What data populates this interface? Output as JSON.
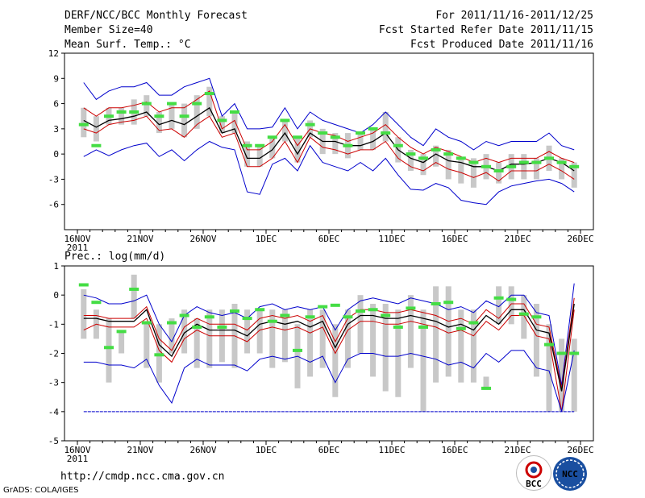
{
  "header": {
    "left": [
      "DERF/NCC/BCC Monthly Forecast",
      "Member Size=40",
      "Mean Surf. Temp.: °C"
    ],
    "right": [
      "For 2011/11/16-2011/12/25",
      "Fcst Started Refer Date 2011/11/15",
      "Fcst Produced Date 2011/11/16"
    ]
  },
  "footer": {
    "url": "http://cmdp.ncc.cma.gov.cn",
    "credit": "GrADS: COLA/IGES",
    "logo1": "BCC",
    "logo2": "NCC"
  },
  "colors": {
    "mean": "#000000",
    "spread": "#cc0000",
    "extreme": "#0000cc",
    "box": "#c8c8c8",
    "obs": "#44dd44"
  },
  "chart_data": [
    {
      "type": "line",
      "title": "Mean Surf. Temp.: °C",
      "xlabel": "",
      "ylabel": "",
      "ylim": [
        -9,
        12
      ],
      "yticks": [
        -6,
        -3,
        0,
        3,
        6,
        9,
        12
      ],
      "xticks": [
        "16NOV",
        "21NOV",
        "26NOV",
        "1DEC",
        "6DEC",
        "11DEC",
        "16DEC",
        "21DEC",
        "26DEC"
      ],
      "xyear": "2011",
      "days": 40,
      "series": [
        {
          "name": "ensemble max",
          "values": [
            8.5,
            6.5,
            7.5,
            8.0,
            8.0,
            8.5,
            7.0,
            7.0,
            8.0,
            8.5,
            9.0,
            4.5,
            6.0,
            3.0,
            3.0,
            3.2,
            5.5,
            3.0,
            5.0,
            4.0,
            3.5,
            3.0,
            2.5,
            3.5,
            5.0,
            3.5,
            2.0,
            1.0,
            3.0,
            2.0,
            1.5,
            0.5,
            1.5,
            1.0,
            1.5,
            1.5,
            1.5,
            2.5,
            1.0,
            0.5
          ]
        },
        {
          "name": "upper spread",
          "values": [
            5.5,
            4.5,
            5.5,
            5.5,
            5.8,
            6.2,
            5.0,
            5.5,
            5.5,
            6.5,
            7.5,
            3.0,
            4.0,
            0.5,
            0.5,
            1.5,
            3.5,
            1.0,
            3.0,
            2.5,
            2.2,
            1.5,
            2.0,
            2.5,
            3.5,
            2.0,
            0.8,
            0.0,
            0.8,
            0.3,
            -0.3,
            -1.0,
            -0.5,
            -1.0,
            -0.5,
            -0.5,
            -0.5,
            0.3,
            -0.5,
            -1.0
          ]
        },
        {
          "name": "ensemble mean",
          "values": [
            4.0,
            3.2,
            4.0,
            4.2,
            4.5,
            5.0,
            3.5,
            4.0,
            3.5,
            4.5,
            5.5,
            2.5,
            3.0,
            -0.5,
            -0.5,
            0.5,
            2.5,
            0.0,
            2.5,
            1.5,
            1.5,
            1.0,
            1.0,
            1.5,
            2.5,
            0.5,
            -0.5,
            -1.0,
            0.0,
            -0.8,
            -1.0,
            -1.5,
            -1.5,
            -2.0,
            -1.2,
            -1.2,
            -1.0,
            -0.5,
            -1.0,
            -2.0
          ]
        },
        {
          "name": "lower spread",
          "values": [
            3.0,
            2.5,
            3.5,
            3.8,
            4.0,
            4.5,
            2.8,
            3.0,
            2.0,
            3.5,
            4.5,
            2.0,
            2.5,
            -1.5,
            -1.5,
            -0.5,
            1.5,
            -1.0,
            2.0,
            0.8,
            0.5,
            0.0,
            0.5,
            0.5,
            1.5,
            -0.5,
            -1.5,
            -2.0,
            -1.0,
            -1.8,
            -2.2,
            -2.8,
            -2.2,
            -3.2,
            -2.0,
            -2.0,
            -2.0,
            -1.2,
            -2.0,
            -3.0
          ]
        },
        {
          "name": "ensemble min",
          "values": [
            -0.3,
            0.5,
            -0.2,
            0.5,
            1.0,
            1.3,
            -0.3,
            0.5,
            -0.8,
            0.5,
            1.5,
            0.8,
            0.5,
            -4.5,
            -4.8,
            -1.2,
            -0.5,
            -2.0,
            1.0,
            -1.0,
            -1.5,
            -2.0,
            -1.0,
            -2.0,
            -0.5,
            -2.5,
            -4.2,
            -4.3,
            -3.5,
            -4.0,
            -5.5,
            -5.8,
            -6.0,
            -4.5,
            -3.8,
            -3.5,
            -3.2,
            -3.0,
            -3.5,
            -4.5
          ]
        }
      ],
      "obs": [
        3.5,
        1.0,
        4.5,
        5.0,
        5.0,
        6.0,
        4.5,
        6.0,
        4.5,
        6.0,
        7.2,
        4.0,
        5.0,
        1.0,
        1.0,
        2.0,
        4.0,
        2.0,
        3.5,
        2.5,
        2.0,
        1.0,
        2.5,
        3.0,
        2.5,
        1.0,
        0.0,
        -0.5,
        0.5,
        0.0,
        -0.5,
        -1.0,
        -1.5,
        -2.0,
        -1.5,
        -1.0,
        -1.0,
        -0.5,
        -1.0,
        -1.5
      ],
      "boxes": [
        [
          2.0,
          5.5
        ],
        [
          1.5,
          4.5
        ],
        [
          3.5,
          5.5
        ],
        [
          3.5,
          5.5
        ],
        [
          3.5,
          6.5
        ],
        [
          4.5,
          7.0
        ],
        [
          2.5,
          5.0
        ],
        [
          3.0,
          6.0
        ],
        [
          2.0,
          6.0
        ],
        [
          3.0,
          7.0
        ],
        [
          4.5,
          8.0
        ],
        [
          2.5,
          4.5
        ],
        [
          2.5,
          5.0
        ],
        [
          -1.5,
          1.5
        ],
        [
          -1.5,
          1.0
        ],
        [
          -0.5,
          2.0
        ],
        [
          1.5,
          4.0
        ],
        [
          -1.0,
          2.0
        ],
        [
          2.0,
          4.0
        ],
        [
          0.0,
          3.0
        ],
        [
          0.0,
          2.5
        ],
        [
          -0.5,
          2.5
        ],
        [
          0.5,
          2.5
        ],
        [
          0.5,
          3.0
        ],
        [
          1.5,
          5.0
        ],
        [
          -1.0,
          2.0
        ],
        [
          -2.0,
          0.5
        ],
        [
          -2.5,
          0.0
        ],
        [
          -1.5,
          1.0
        ],
        [
          -3.0,
          0.5
        ],
        [
          -3.5,
          -0.5
        ],
        [
          -4.0,
          -0.5
        ],
        [
          -3.0,
          0.0
        ],
        [
          -3.5,
          -1.0
        ],
        [
          -3.0,
          0.0
        ],
        [
          -3.0,
          0.0
        ],
        [
          -3.0,
          -0.5
        ],
        [
          -2.0,
          1.0
        ],
        [
          -3.0,
          -0.5
        ],
        [
          -4.0,
          -1.0
        ]
      ]
    },
    {
      "type": "line",
      "title": "Prec.: log(mm/d)",
      "xlabel": "",
      "ylabel": "",
      "ylim": [
        -5,
        1
      ],
      "yticks": [
        -5,
        -4,
        -3,
        -2,
        -1,
        0,
        1
      ],
      "xticks": [
        "16NOV",
        "21NOV",
        "26NOV",
        "1DEC",
        "6DEC",
        "11DEC",
        "16DEC",
        "21DEC",
        "26DEC"
      ],
      "xyear": "2011",
      "days": 40,
      "series": [
        {
          "name": "ensemble max",
          "values": [
            0.0,
            -0.1,
            -0.3,
            -0.3,
            -0.2,
            0.0,
            -1.0,
            -1.6,
            -0.7,
            -0.4,
            -0.6,
            -0.7,
            -0.6,
            -0.8,
            -0.4,
            -0.3,
            -0.5,
            -0.4,
            -0.5,
            -0.4,
            -1.2,
            -0.5,
            -0.2,
            -0.1,
            -0.2,
            -0.3,
            -0.1,
            -0.2,
            -0.3,
            -0.5,
            -0.4,
            -0.6,
            -0.2,
            -0.4,
            0.0,
            0.0,
            -0.6,
            -0.7,
            -3.1,
            0.4
          ]
        },
        {
          "name": "upper spread",
          "values": [
            -0.7,
            -0.7,
            -0.8,
            -0.8,
            -0.8,
            -0.4,
            -1.5,
            -1.9,
            -1.1,
            -0.8,
            -1.0,
            -1.0,
            -1.0,
            -1.2,
            -0.8,
            -0.7,
            -0.8,
            -0.7,
            -0.9,
            -0.7,
            -1.6,
            -0.8,
            -0.5,
            -0.5,
            -0.6,
            -0.6,
            -0.5,
            -0.6,
            -0.7,
            -0.9,
            -0.8,
            -1.0,
            -0.5,
            -0.8,
            -0.3,
            -0.3,
            -1.0,
            -1.1,
            -3.2,
            -0.1
          ]
        },
        {
          "name": "ensemble mean",
          "values": [
            -0.8,
            -0.8,
            -0.9,
            -0.9,
            -0.9,
            -0.5,
            -1.7,
            -2.1,
            -1.3,
            -1.0,
            -1.2,
            -1.2,
            -1.2,
            -1.4,
            -1.0,
            -0.9,
            -1.0,
            -0.9,
            -1.1,
            -0.9,
            -1.8,
            -1.0,
            -0.7,
            -0.7,
            -0.8,
            -0.8,
            -0.7,
            -0.8,
            -0.9,
            -1.1,
            -1.0,
            -1.2,
            -0.7,
            -1.0,
            -0.5,
            -0.5,
            -1.2,
            -1.3,
            -3.3,
            -0.3
          ]
        },
        {
          "name": "lower spread",
          "values": [
            -1.2,
            -1.0,
            -1.1,
            -1.1,
            -1.1,
            -0.8,
            -1.9,
            -2.3,
            -1.5,
            -1.2,
            -1.4,
            -1.4,
            -1.4,
            -1.6,
            -1.2,
            -1.1,
            -1.2,
            -1.1,
            -1.3,
            -1.1,
            -2.0,
            -1.2,
            -0.9,
            -0.9,
            -1.0,
            -1.0,
            -0.9,
            -1.0,
            -1.1,
            -1.3,
            -1.2,
            -1.4,
            -0.9,
            -1.2,
            -0.7,
            -0.7,
            -1.4,
            -1.5,
            -4.0,
            -0.5
          ]
        },
        {
          "name": "ensemble min",
          "values": [
            -2.3,
            -2.3,
            -2.4,
            -2.4,
            -2.5,
            -2.2,
            -3.1,
            -3.7,
            -2.5,
            -2.2,
            -2.4,
            -2.4,
            -2.4,
            -2.6,
            -2.2,
            -2.1,
            -2.2,
            -2.1,
            -2.3,
            -2.1,
            -3.0,
            -2.2,
            -2.0,
            -2.0,
            -2.1,
            -2.1,
            -2.0,
            -2.1,
            -2.2,
            -2.4,
            -2.3,
            -2.5,
            -2.0,
            -2.3,
            -1.9,
            -1.9,
            -2.5,
            -2.6,
            -4.0,
            -1.9
          ]
        }
      ],
      "obs": [
        0.35,
        -0.25,
        -1.8,
        -1.25,
        0.2,
        -0.95,
        -2.05,
        -0.95,
        -0.7,
        -1.1,
        -0.75,
        -1.1,
        -0.55,
        -0.8,
        -0.5,
        -0.9,
        -0.7,
        -1.9,
        -0.75,
        -0.4,
        -0.35,
        -0.75,
        -0.55,
        -0.5,
        -0.7,
        -1.1,
        -0.45,
        -1.1,
        -0.3,
        -0.25,
        -1.15,
        -0.95,
        -3.2,
        -0.1,
        -0.15,
        -0.65,
        -0.75,
        -1.7,
        -2.0,
        -2.0
      ],
      "boxes": [
        [
          -1.5,
          0.2
        ],
        [
          -1.5,
          -0.5
        ],
        [
          -3.0,
          -0.8
        ],
        [
          -2.0,
          -1.2
        ],
        [
          -0.8,
          0.7
        ],
        [
          -2.5,
          -1.0
        ],
        [
          -3.0,
          -1.0
        ],
        [
          -2.0,
          -0.8
        ],
        [
          -2.0,
          -0.5
        ],
        [
          -2.5,
          -0.8
        ],
        [
          -2.5,
          -0.5
        ],
        [
          -2.3,
          -0.5
        ],
        [
          -2.5,
          -0.3
        ],
        [
          -2.0,
          -0.5
        ],
        [
          -2.0,
          -0.5
        ],
        [
          -2.5,
          -0.5
        ],
        [
          -2.3,
          -0.5
        ],
        [
          -3.2,
          -1.0
        ],
        [
          -2.8,
          -0.5
        ],
        [
          -2.5,
          -0.5
        ],
        [
          -3.5,
          -1.0
        ],
        [
          -2.5,
          -0.5
        ],
        [
          -2.0,
          0.0
        ],
        [
          -2.8,
          -0.3
        ],
        [
          -3.3,
          -0.3
        ],
        [
          -3.5,
          -0.5
        ],
        [
          -2.5,
          0.0
        ],
        [
          -4.0,
          -0.5
        ],
        [
          -3.0,
          0.3
        ],
        [
          -2.8,
          0.3
        ],
        [
          -3.0,
          -0.5
        ],
        [
          -3.0,
          -0.5
        ],
        [
          -3.2,
          -2.8
        ],
        [
          -1.0,
          0.3
        ],
        [
          -1.0,
          0.3
        ],
        [
          -1.5,
          0.0
        ],
        [
          -2.8,
          -0.3
        ],
        [
          -4.0,
          -1.0
        ],
        [
          -4.0,
          -1.5
        ],
        [
          -4.0,
          -1.5
        ]
      ]
    }
  ]
}
